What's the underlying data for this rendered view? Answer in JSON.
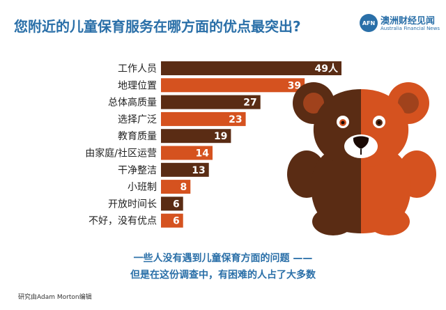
{
  "title": "您附近的儿童保育服务在哪方面的优点最突出?",
  "logo": {
    "badge": "AFN",
    "name_cn": "澳洲财经见闻",
    "name_en": "Australia Financial News"
  },
  "chart_data": {
    "type": "bar",
    "orientation": "horizontal",
    "categories": [
      "工作人员",
      "地理位置",
      "总体高质量",
      "选择广泛",
      "教育质量",
      "由家庭/社区运营",
      "干净整洁",
      "小班制",
      "开放时间长",
      "不好，没有优点"
    ],
    "values": [
      49,
      39,
      27,
      23,
      19,
      14,
      13,
      8,
      6,
      6
    ],
    "value_labels": [
      "49人",
      "39",
      "27",
      "23",
      "19",
      "14",
      "13",
      "8",
      "6",
      "6"
    ],
    "colors": [
      "#5a2c14",
      "#d5521f"
    ],
    "grid": false,
    "legend": "none"
  },
  "footer": {
    "line1": "一些人没有遇到儿童保育方面的问题 ——",
    "line2": "但是在这份调查中，有困难的人占了大多数"
  },
  "credit": "研究由Adam Morton编辑"
}
